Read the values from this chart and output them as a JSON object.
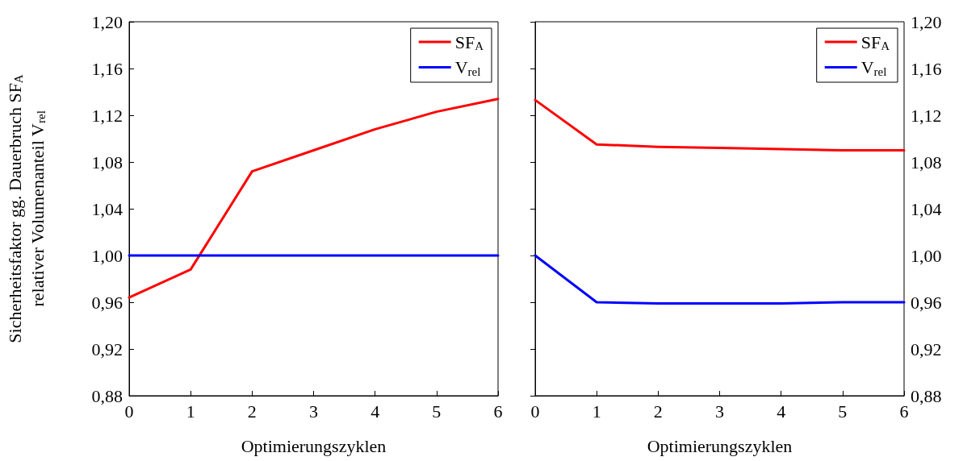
{
  "chart_data": [
    {
      "type": "line",
      "xlabel": "Optimierungszyklen",
      "ylabel": "Sicherheitsfaktor gg. Dauerbruch SF$_{A}$\nrelativer Volumenanteil V$_{rel}$",
      "x": [
        0,
        1,
        2,
        3,
        4,
        5,
        6
      ],
      "series": [
        {
          "name": "SF$_{A}$",
          "color": "#ff0000",
          "values": [
            0.964,
            0.988,
            1.072,
            1.09,
            1.108,
            1.123,
            1.134
          ]
        },
        {
          "name": "V$_{rel}$",
          "color": "#0000ff",
          "values": [
            1.0,
            1.0,
            1.0,
            1.0,
            1.0,
            1.0,
            1.0
          ]
        }
      ],
      "xlim": [
        0,
        6
      ],
      "xticks": [
        0,
        1,
        2,
        3,
        4,
        5,
        6
      ],
      "ylim": [
        0.88,
        1.2
      ],
      "yticks": [
        {
          "value": 0.88,
          "label": "0,88"
        },
        {
          "value": 0.92,
          "label": "0,92"
        },
        {
          "value": 0.96,
          "label": "0,96"
        },
        {
          "value": 1.0,
          "label": "1,00"
        },
        {
          "value": 1.04,
          "label": "1,04"
        },
        {
          "value": 1.08,
          "label": "1,08"
        },
        {
          "value": 1.12,
          "label": "1,12"
        },
        {
          "value": 1.16,
          "label": "1,16"
        },
        {
          "value": 1.2,
          "label": "1,20"
        }
      ],
      "legend": "top right",
      "grid": false,
      "marker": "none",
      "line_style": "solid"
    },
    {
      "type": "line",
      "xlabel": "Optimierungszyklen",
      "x": [
        0,
        1,
        2,
        3,
        4,
        5,
        6
      ],
      "series": [
        {
          "name": "SF$_{A}$",
          "color": "#ff0000",
          "values": [
            1.133,
            1.095,
            1.093,
            1.092,
            1.091,
            1.09,
            1.09
          ]
        },
        {
          "name": "V$_{rel}$",
          "color": "#0000ff",
          "values": [
            1.0,
            0.96,
            0.959,
            0.959,
            0.959,
            0.96,
            0.96
          ]
        }
      ],
      "xlim": [
        0,
        6
      ],
      "xticks": [
        0,
        1,
        2,
        3,
        4,
        5,
        6
      ],
      "ylim": [
        0.88,
        1.2
      ],
      "yticks": [
        {
          "value": 0.88,
          "label": "0,88"
        },
        {
          "value": 0.92,
          "label": "0,92"
        },
        {
          "value": 0.96,
          "label": "0,96"
        },
        {
          "value": 1.0,
          "label": "1,00"
        },
        {
          "value": 1.04,
          "label": "1,04"
        },
        {
          "value": 1.08,
          "label": "1,08"
        },
        {
          "value": 1.12,
          "label": "1,12"
        },
        {
          "value": 1.16,
          "label": "1,16"
        },
        {
          "value": 1.2,
          "label": "1,20"
        }
      ],
      "legend": "top right",
      "grid": false,
      "marker": "none",
      "line_style": "solid"
    }
  ]
}
